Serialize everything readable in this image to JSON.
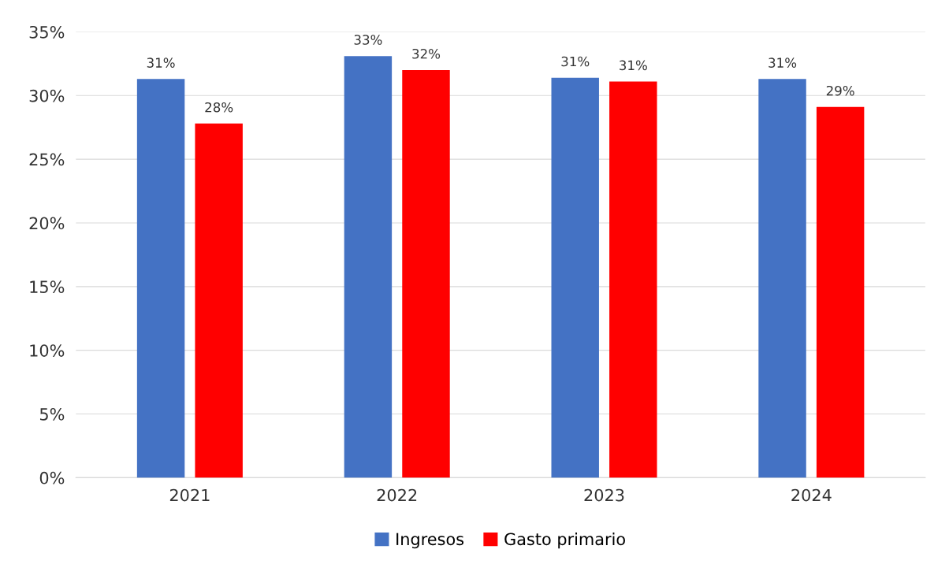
{
  "chart_data": {
    "type": "bar",
    "categories": [
      "2021",
      "2022",
      "2023",
      "2024"
    ],
    "series": [
      {
        "name": "Ingresos",
        "color": "#4472c4",
        "values": [
          31.3,
          33.1,
          31.4,
          31.3
        ],
        "value_labels": [
          "31%",
          "33%",
          "31%",
          "31%"
        ]
      },
      {
        "name": "Gasto primario",
        "color": "#ff0000",
        "values": [
          27.8,
          32.0,
          31.1,
          29.1
        ],
        "value_labels": [
          "28%",
          "32%",
          "31%",
          "29%"
        ]
      }
    ],
    "ylim": [
      0,
      35
    ],
    "yticks": [
      {
        "value": 0,
        "label": "0%"
      },
      {
        "value": 5,
        "label": "5%"
      },
      {
        "value": 10,
        "label": "10%"
      },
      {
        "value": 15,
        "label": "15%"
      },
      {
        "value": 20,
        "label": "20%"
      },
      {
        "value": 25,
        "label": "25%"
      },
      {
        "value": 30,
        "label": "30%"
      },
      {
        "value": 35,
        "label": "35%"
      }
    ],
    "grid": "y",
    "legend": "bottom"
  }
}
